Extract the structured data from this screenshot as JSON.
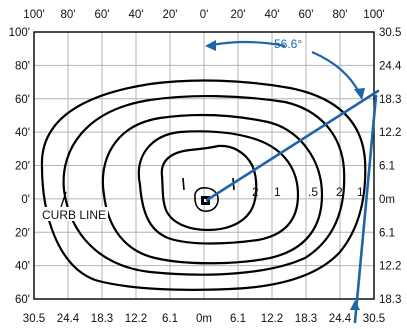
{
  "top_axis_labels": [
    "100'",
    "80'",
    "60'",
    "40'",
    "20'",
    "0'",
    "20'",
    "40'",
    "60'",
    "80'",
    "100'"
  ],
  "bottom_axis_labels": [
    "30.5",
    "24.4",
    "18.3",
    "12.2",
    "6.1",
    "0m",
    "6.1",
    "12.2",
    "18.3",
    "24.4",
    "30.5"
  ],
  "left_axis_labels": [
    "100'",
    "80'",
    "60'",
    "40'",
    "20'",
    "0'",
    "20'",
    "40'",
    "60'"
  ],
  "right_axis_labels": [
    "30.5",
    "24.4",
    "18.3",
    "12.2",
    "6.1",
    "0m",
    "6.1",
    "12.2",
    "18.3"
  ],
  "contour_labels": [
    "2",
    "1",
    ".5",
    "2",
    "1"
  ],
  "angle_label": "56.6°",
  "curb_label": "CURB LINE",
  "colors": {
    "accent": "#1f66a8",
    "grid": "#b4b4b4",
    "contour": "#000000"
  }
}
